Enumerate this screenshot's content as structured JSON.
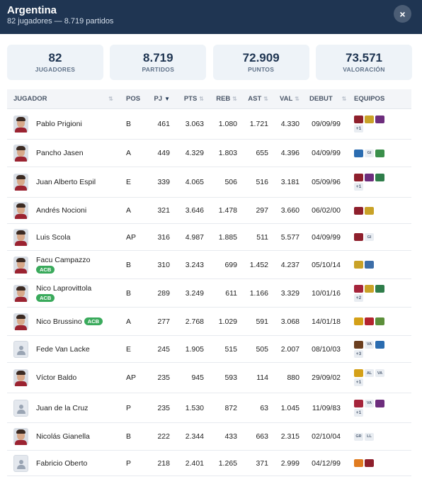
{
  "header": {
    "title": "Argentina",
    "subtitle": "82 jugadores — 8.719 partidos",
    "close_label": "×"
  },
  "stats": [
    {
      "value": "82",
      "label": "JUGADORES"
    },
    {
      "value": "8.719",
      "label": "PARTIDOS"
    },
    {
      "value": "72.909",
      "label": "PUNTOS"
    },
    {
      "value": "73.571",
      "label": "VALORACIÓN"
    }
  ],
  "table": {
    "columns": {
      "jugador": "JUGADOR",
      "pos": "POS",
      "pj": "PJ",
      "pts": "PTS",
      "reb": "REB",
      "ast": "AST",
      "val": "VAL",
      "debut": "DEBUT",
      "equipos": "EQUIPOS",
      "sort_icon": "⇅",
      "sort_active_icon": "▼"
    },
    "rows": [
      {
        "name": "Pablo Prigioni",
        "acb": "",
        "acb_inline": false,
        "pos": "B",
        "pj": "461",
        "pts": "3.063",
        "reb": "1.080",
        "ast": "1.721",
        "val": "4.330",
        "debut": "09/09/99",
        "photo": true,
        "teams": [
          "#8e1f2c",
          "#c9a227",
          "#6d2d7d"
        ],
        "more": "+1"
      },
      {
        "name": "Pancho Jasen",
        "acb": "",
        "acb_inline": false,
        "pos": "A",
        "pj": "449",
        "pts": "4.329",
        "reb": "1.803",
        "ast": "655",
        "val": "4.396",
        "debut": "04/09/99",
        "photo": true,
        "teams": [
          "#2b6cb0",
          "GI",
          "#3a8f4a"
        ],
        "more": ""
      },
      {
        "name": "Juan Alberto Espil",
        "acb": "",
        "acb_inline": false,
        "pos": "E",
        "pj": "339",
        "pts": "4.065",
        "reb": "506",
        "ast": "516",
        "val": "3.181",
        "debut": "05/09/96",
        "photo": true,
        "teams": [
          "#8e1f2c",
          "#6d2d7d",
          "#2f7d4a"
        ],
        "more": "+1"
      },
      {
        "name": "Andrés Nocioni",
        "acb": "",
        "acb_inline": false,
        "pos": "A",
        "pj": "321",
        "pts": "3.646",
        "reb": "1.478",
        "ast": "297",
        "val": "3.660",
        "debut": "06/02/00",
        "photo": true,
        "teams": [
          "#8e1f2c",
          "#c9a227"
        ],
        "more": ""
      },
      {
        "name": "Luis Scola",
        "acb": "",
        "acb_inline": false,
        "pos": "AP",
        "pj": "316",
        "pts": "4.987",
        "reb": "1.885",
        "ast": "511",
        "val": "5.577",
        "debut": "04/09/99",
        "photo": true,
        "teams": [
          "#8e1f2c",
          "GI"
        ],
        "more": ""
      },
      {
        "name": "Facu Campazzo",
        "acb": "ACB",
        "acb_inline": false,
        "pos": "B",
        "pj": "310",
        "pts": "3.243",
        "reb": "699",
        "ast": "1.452",
        "val": "4.237",
        "debut": "05/10/14",
        "photo": true,
        "teams": [
          "#c9a227",
          "#3d6ea8"
        ],
        "more": ""
      },
      {
        "name": "Nico Laprovittola",
        "acb": "ACB",
        "acb_inline": false,
        "pos": "B",
        "pj": "289",
        "pts": "3.249",
        "reb": "611",
        "ast": "1.166",
        "val": "3.329",
        "debut": "10/01/16",
        "photo": true,
        "teams": [
          "#a5243b",
          "#c9a227",
          "#2f7d4a"
        ],
        "more": "+2"
      },
      {
        "name": "Nico Brussino",
        "acb": "ACB",
        "acb_inline": true,
        "pos": "A",
        "pj": "277",
        "pts": "2.768",
        "reb": "1.029",
        "ast": "591",
        "val": "3.068",
        "debut": "14/01/18",
        "photo": true,
        "teams": [
          "#d4a017",
          "#b3242f",
          "#5c8f3a"
        ],
        "more": ""
      },
      {
        "name": "Fede Van Lacke",
        "acb": "",
        "acb_inline": false,
        "pos": "E",
        "pj": "245",
        "pts": "1.905",
        "reb": "515",
        "ast": "505",
        "val": "2.007",
        "debut": "08/10/03",
        "photo": false,
        "teams": [
          "#6b3f1f",
          "VA",
          "#2b6cb0"
        ],
        "more": "+3"
      },
      {
        "name": "Víctor Baldo",
        "acb": "",
        "acb_inline": false,
        "pos": "AP",
        "pj": "235",
        "pts": "945",
        "reb": "593",
        "ast": "114",
        "val": "880",
        "debut": "29/09/02",
        "photo": true,
        "teams": [
          "#d4a017",
          "AL",
          "VA"
        ],
        "more": "+1"
      },
      {
        "name": "Juan de la Cruz",
        "acb": "",
        "acb_inline": false,
        "pos": "P",
        "pj": "235",
        "pts": "1.530",
        "reb": "872",
        "ast": "63",
        "val": "1.045",
        "debut": "11/09/83",
        "photo": false,
        "teams": [
          "#a5243b",
          "VA",
          "#6d2d7d"
        ],
        "more": "+1"
      },
      {
        "name": "Nicolás Gianella",
        "acb": "",
        "acb_inline": false,
        "pos": "B",
        "pj": "222",
        "pts": "2.344",
        "reb": "433",
        "ast": "663",
        "val": "2.315",
        "debut": "02/10/04",
        "photo": true,
        "teams": [
          "GR",
          "LL"
        ],
        "more": ""
      },
      {
        "name": "Fabricio Oberto",
        "acb": "",
        "acb_inline": false,
        "pos": "P",
        "pj": "218",
        "pts": "2.401",
        "reb": "1.265",
        "ast": "371",
        "val": "2.999",
        "debut": "04/12/99",
        "photo": false,
        "teams": [
          "#e07b1f",
          "#8e1f2c"
        ],
        "more": ""
      }
    ]
  }
}
